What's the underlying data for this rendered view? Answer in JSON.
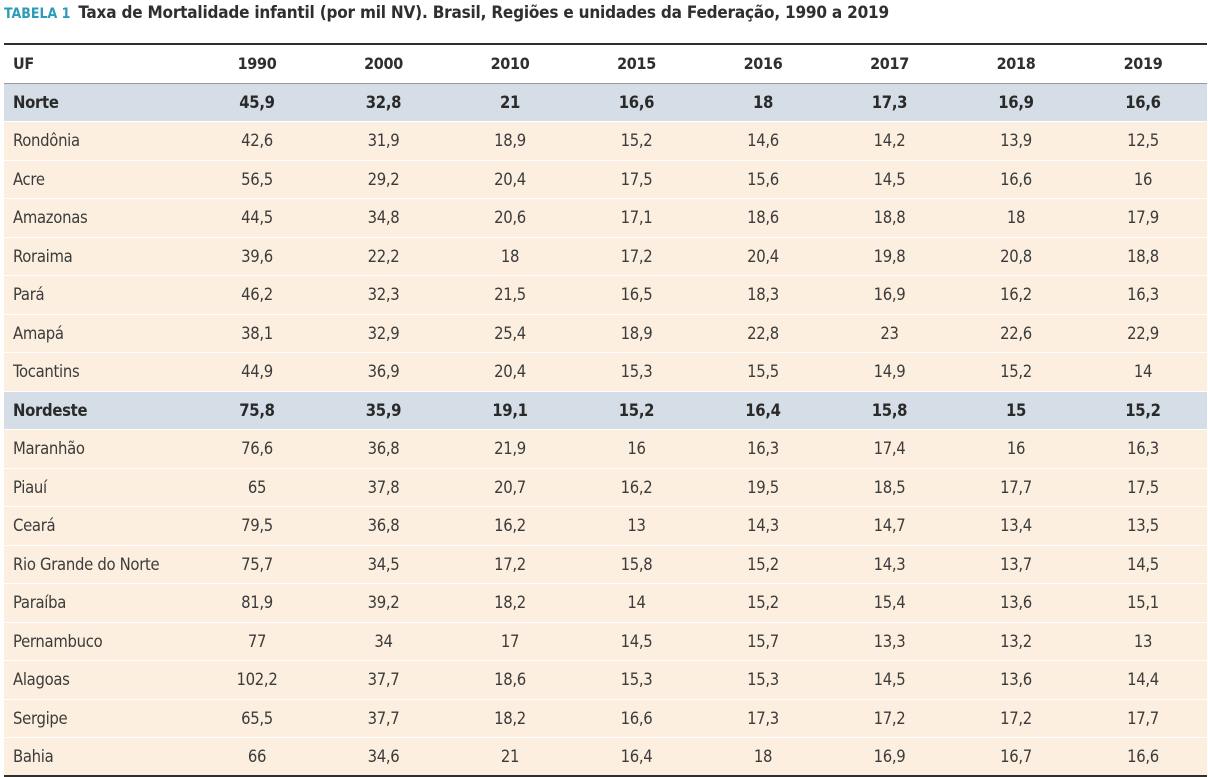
{
  "caption": {
    "label": "TABELA 1",
    "title": "Taxa de Mortalidade infantil (por mil NV). Brasil, Regiões e unidades da Federação, 1990 a 2019"
  },
  "table": {
    "columns": [
      "UF",
      "1990",
      "2000",
      "2010",
      "2015",
      "2016",
      "2017",
      "2018",
      "2019"
    ],
    "rows": [
      {
        "type": "region",
        "cells": [
          "Norte",
          "45,9",
          "32,8",
          "21",
          "16,6",
          "18",
          "17,3",
          "16,9",
          "16,6"
        ]
      },
      {
        "type": "state",
        "cells": [
          "Rondônia",
          "42,6",
          "31,9",
          "18,9",
          "15,2",
          "14,6",
          "14,2",
          "13,9",
          "12,5"
        ]
      },
      {
        "type": "state",
        "cells": [
          "Acre",
          "56,5",
          "29,2",
          "20,4",
          "17,5",
          "15,6",
          "14,5",
          "16,6",
          "16"
        ]
      },
      {
        "type": "state",
        "cells": [
          "Amazonas",
          "44,5",
          "34,8",
          "20,6",
          "17,1",
          "18,6",
          "18,8",
          "18",
          "17,9"
        ]
      },
      {
        "type": "state",
        "cells": [
          "Roraima",
          "39,6",
          "22,2",
          "18",
          "17,2",
          "20,4",
          "19,8",
          "20,8",
          "18,8"
        ]
      },
      {
        "type": "state",
        "cells": [
          "Pará",
          "46,2",
          "32,3",
          "21,5",
          "16,5",
          "18,3",
          "16,9",
          "16,2",
          "16,3"
        ]
      },
      {
        "type": "state",
        "cells": [
          "Amapá",
          "38,1",
          "32,9",
          "25,4",
          "18,9",
          "22,8",
          "23",
          "22,6",
          "22,9"
        ]
      },
      {
        "type": "state",
        "cells": [
          "Tocantins",
          "44,9",
          "36,9",
          "20,4",
          "15,3",
          "15,5",
          "14,9",
          "15,2",
          "14"
        ]
      },
      {
        "type": "region",
        "cells": [
          "Nordeste",
          "75,8",
          "35,9",
          "19,1",
          "15,2",
          "16,4",
          "15,8",
          "15",
          "15,2"
        ]
      },
      {
        "type": "state",
        "cells": [
          "Maranhão",
          "76,6",
          "36,8",
          "21,9",
          "16",
          "16,3",
          "17,4",
          "16",
          "16,3"
        ]
      },
      {
        "type": "state",
        "cells": [
          "Piauí",
          "65",
          "37,8",
          "20,7",
          "16,2",
          "19,5",
          "18,5",
          "17,7",
          "17,5"
        ]
      },
      {
        "type": "state",
        "cells": [
          "Ceará",
          "79,5",
          "36,8",
          "16,2",
          "13",
          "14,3",
          "14,7",
          "13,4",
          "13,5"
        ]
      },
      {
        "type": "state",
        "cells": [
          "Rio Grande do Norte",
          "75,7",
          "34,5",
          "17,2",
          "15,8",
          "15,2",
          "14,3",
          "13,7",
          "14,5"
        ]
      },
      {
        "type": "state",
        "cells": [
          "Paraíba",
          "81,9",
          "39,2",
          "18,2",
          "14",
          "15,2",
          "15,4",
          "13,6",
          "15,1"
        ]
      },
      {
        "type": "state",
        "cells": [
          "Pernambuco",
          "77",
          "34",
          "17",
          "14,5",
          "15,7",
          "13,3",
          "13,2",
          "13"
        ]
      },
      {
        "type": "state",
        "cells": [
          "Alagoas",
          "102,2",
          "37,7",
          "18,6",
          "15,3",
          "15,3",
          "14,5",
          "13,6",
          "14,4"
        ]
      },
      {
        "type": "state",
        "cells": [
          "Sergipe",
          "65,5",
          "37,7",
          "18,2",
          "16,6",
          "17,3",
          "17,2",
          "17,2",
          "17,7"
        ]
      },
      {
        "type": "state",
        "cells": [
          "Bahia",
          "66",
          "34,6",
          "21",
          "16,4",
          "18",
          "16,9",
          "16,7",
          "16,6"
        ]
      }
    ]
  },
  "colors": {
    "label": "#2a9bb8",
    "region_row_bg": "#d5dee6",
    "state_row_bg": "#fcefdf"
  }
}
